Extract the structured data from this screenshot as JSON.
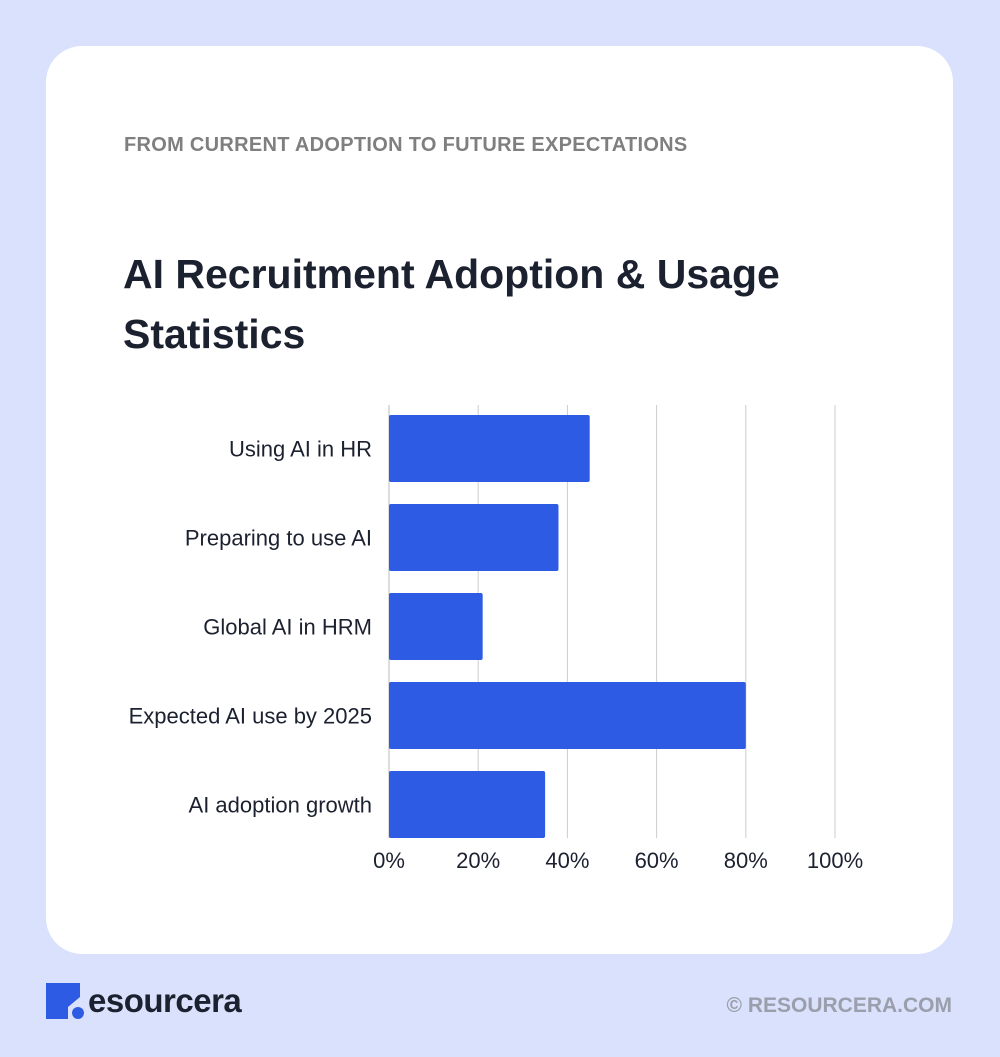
{
  "eyebrow": "FROM CURRENT ADOPTION TO FUTURE EXPECTATIONS",
  "title": "AI Recruitment Adoption & Usage Statistics",
  "colors": {
    "bar": "#2d5be3",
    "background": "#d9e1fd",
    "card": "#ffffff",
    "grid": "#cccccc"
  },
  "chart_data": {
    "type": "bar",
    "orientation": "horizontal",
    "categories": [
      "Using AI in HR",
      "Preparing to use AI",
      "Global AI in HRM",
      "Expected AI use by 2025",
      "AI adoption growth"
    ],
    "values": [
      45,
      38,
      21,
      80,
      35
    ],
    "xlim": [
      0,
      100
    ],
    "xticks": [
      "0%",
      "20%",
      "40%",
      "60%",
      "80%",
      "100%"
    ],
    "grid": true
  },
  "footer": {
    "brand": "esourcera",
    "copyright": "© RESOURCERA.COM"
  }
}
